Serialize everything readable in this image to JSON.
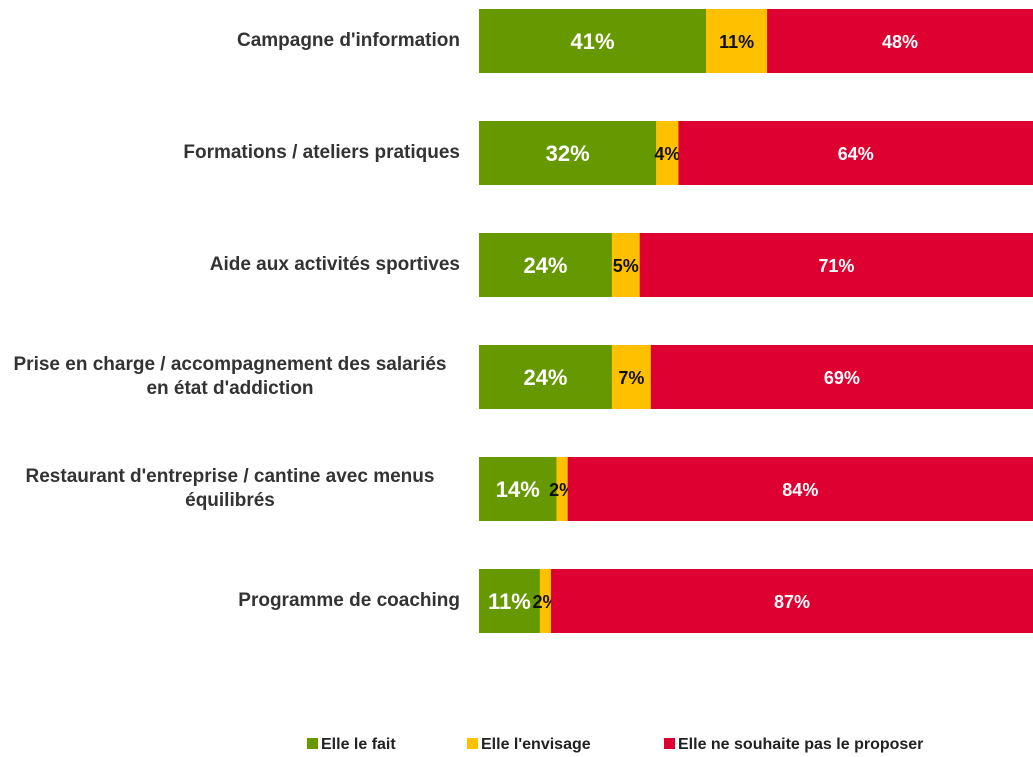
{
  "chart_data": {
    "type": "stacked-bar-horizontal",
    "categories": [
      "Campagne d'information",
      "Formations / ateliers pratiques",
      "Aide aux activités sportives",
      "Prise en charge / accompagnement des salariés en état d'addiction",
      "Restaurant d'entreprise / cantine avec menus équilibrés",
      "Programme de coaching"
    ],
    "series": [
      {
        "name": "Elle le fait",
        "color": "#669900",
        "values": [
          41,
          32,
          24,
          24,
          14,
          11
        ],
        "value_labels": [
          "41%",
          "32%",
          "24%",
          "24%",
          "14%",
          "11%"
        ]
      },
      {
        "name": "Elle l'envisage",
        "color": "#ffc000",
        "values": [
          11,
          4,
          5,
          7,
          2,
          2
        ],
        "value_labels": [
          "11%",
          "4%",
          "5%",
          "7%",
          "2%",
          "2%"
        ]
      },
      {
        "name": "Elle ne souhaite pas le proposer",
        "color": "#dd0031",
        "values": [
          48,
          64,
          71,
          69,
          84,
          87
        ],
        "value_labels": [
          "48%",
          "64%",
          "71%",
          "69%",
          "84%",
          "87%"
        ]
      }
    ],
    "xlim": [
      0,
      100
    ],
    "legend": "bottom"
  }
}
